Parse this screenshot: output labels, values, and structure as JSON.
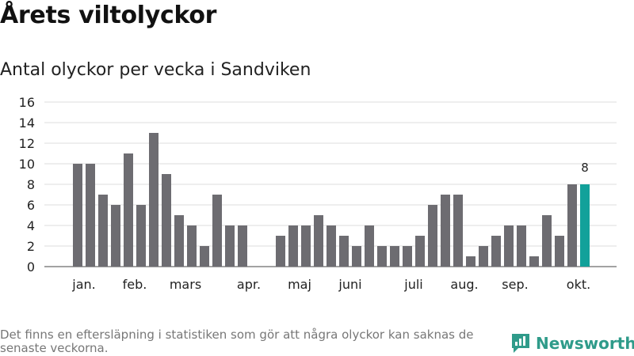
{
  "header": {
    "title": "Årets viltolyckor",
    "subtitle": "Antal olyckor per vecka i Sandviken"
  },
  "footer": {
    "note": "Det finns en eftersläpning i statistiken som gör att några olyckor kan saknas de senaste veckorna.",
    "brand": "Newsworthy"
  },
  "colors": {
    "bar": "#6d6c71",
    "highlight": "#12a19a",
    "grid": "#dddddd",
    "brand": "#2f9b8a"
  },
  "chart_data": {
    "type": "bar",
    "title": "Antal olyckor per vecka i Sandviken",
    "xlabel": "",
    "ylabel": "",
    "ylim": [
      0,
      16
    ],
    "yticks": [
      0,
      2,
      4,
      6,
      8,
      10,
      12,
      14,
      16
    ],
    "weeks": [
      1,
      2,
      3,
      4,
      5,
      6,
      7,
      8,
      9,
      10,
      11,
      12,
      13,
      14,
      15,
      16,
      17,
      18,
      19,
      20,
      21,
      22,
      23,
      24,
      25,
      26,
      27,
      28,
      29,
      30,
      31,
      32,
      33,
      34,
      35,
      36,
      37,
      38,
      39,
      40,
      41
    ],
    "values": [
      10,
      10,
      7,
      6,
      11,
      6,
      13,
      9,
      5,
      4,
      2,
      7,
      4,
      4,
      null,
      null,
      3,
      4,
      4,
      5,
      4,
      3,
      2,
      4,
      2,
      2,
      2,
      3,
      6,
      7,
      7,
      1,
      2,
      3,
      4,
      4,
      1,
      5,
      3,
      8,
      8
    ],
    "highlight_index": 40,
    "highlight_label": "8",
    "month_labels": [
      {
        "label": "jan.",
        "week": 1.5
      },
      {
        "label": "feb.",
        "week": 5.5
      },
      {
        "label": "mars",
        "week": 9.5
      },
      {
        "label": "apr.",
        "week": 14.5
      },
      {
        "label": "maj",
        "week": 18.5
      },
      {
        "label": "juni",
        "week": 22.5
      },
      {
        "label": "juli",
        "week": 27.5
      },
      {
        "label": "aug.",
        "week": 31.5
      },
      {
        "label": "sep.",
        "week": 35.5
      },
      {
        "label": "okt.",
        "week": 40.5
      }
    ]
  }
}
